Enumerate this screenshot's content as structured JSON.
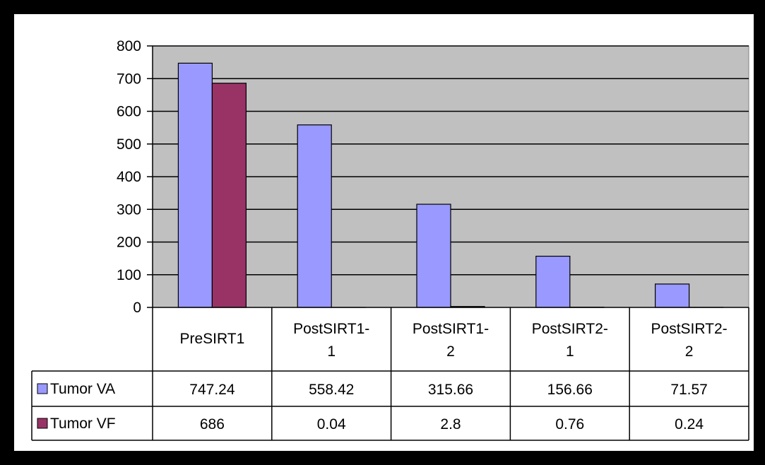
{
  "chart_data": {
    "type": "bar",
    "categories": [
      [
        "PreSIRT1"
      ],
      [
        "PostSIRT1-",
        "1"
      ],
      [
        "PostSIRT1-",
        "2"
      ],
      [
        "PostSIRT2-",
        "1"
      ],
      [
        "PostSIRT2-",
        "2"
      ]
    ],
    "series": [
      {
        "name": "Tumor VA",
        "color": "#9999ff",
        "values": [
          747.24,
          558.42,
          315.66,
          156.66,
          71.57
        ],
        "labels": [
          "747.24",
          "558.42",
          "315.66",
          "156.66",
          "71.57"
        ]
      },
      {
        "name": "Tumor VF",
        "color": "#993366",
        "values": [
          686,
          0.04,
          2.8,
          0.76,
          0.24
        ],
        "labels": [
          "686",
          "0.04",
          "2.8",
          "0.76",
          "0.24"
        ]
      }
    ],
    "ylim": [
      0,
      800
    ],
    "yticks": [
      "0",
      "100",
      "200",
      "300",
      "400",
      "500",
      "600",
      "700",
      "800"
    ],
    "plot_background": "#c0c0c0",
    "grid": true,
    "legend": "data table"
  }
}
